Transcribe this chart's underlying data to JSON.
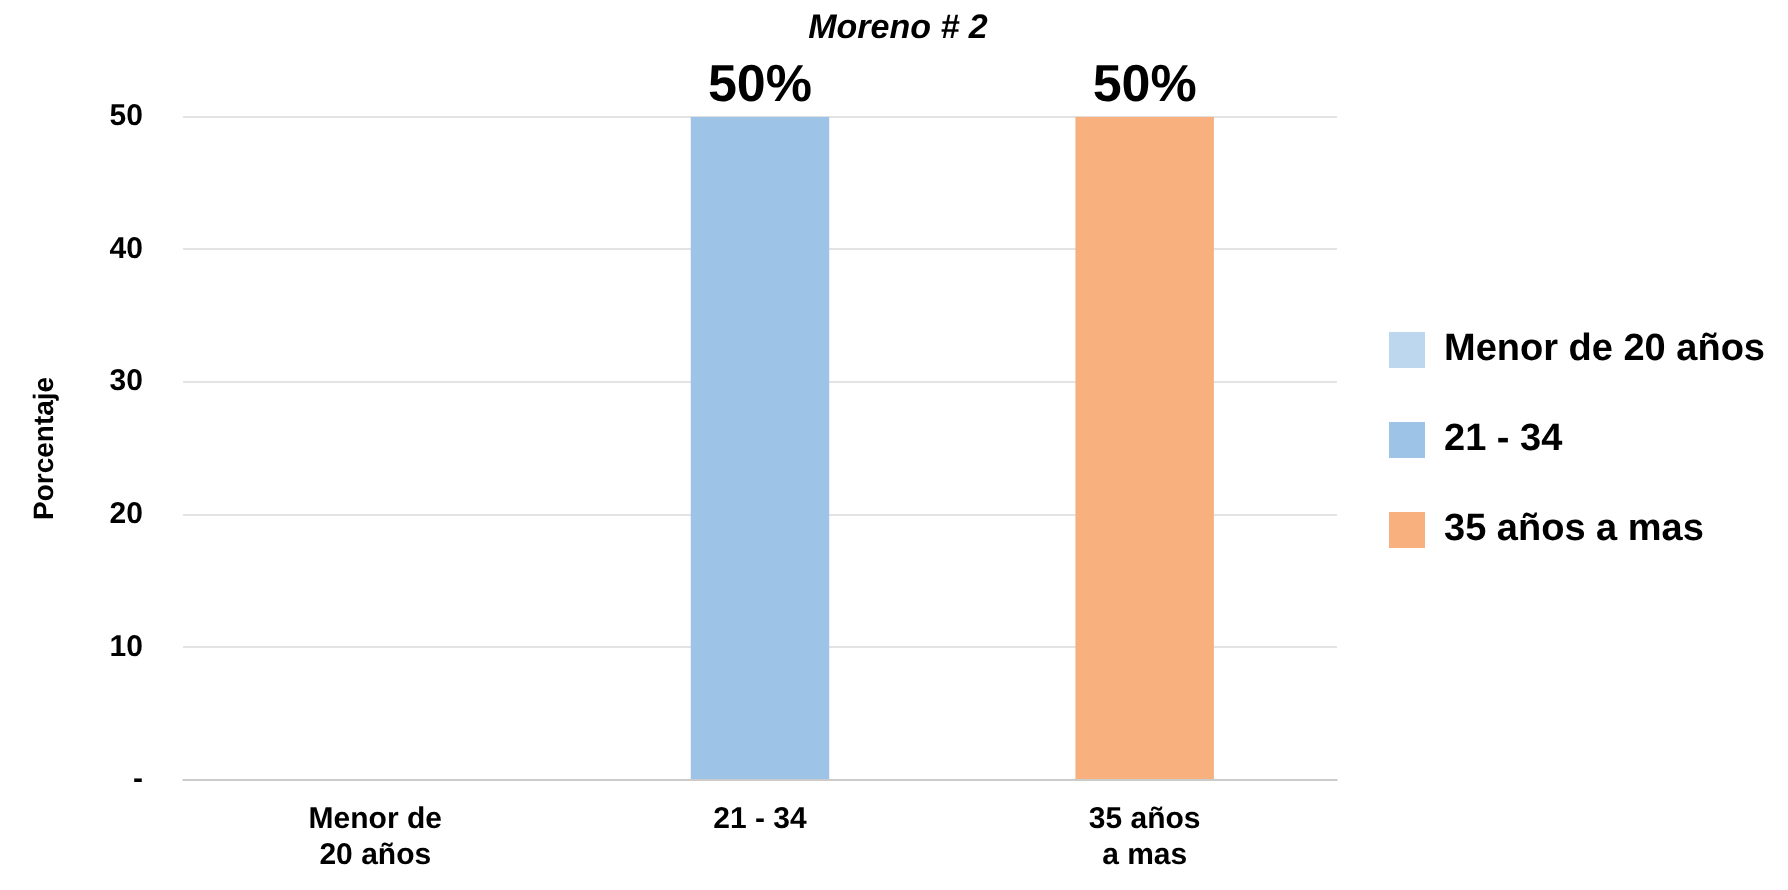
{
  "chart_data": {
    "type": "bar",
    "title": "Moreno # 2",
    "ylabel": "Porcentaje",
    "categories": [
      "Menor de 20 años",
      "21 - 34",
      "35 años a mas"
    ],
    "stacked": true,
    "series": [
      {
        "name": "Menor de 20 años",
        "color": "#bdd7ee",
        "values": [
          0,
          null,
          null
        ],
        "value_labels": [
          null,
          null,
          null
        ]
      },
      {
        "name": "21 - 34",
        "color": "#9dc3e6",
        "values": [
          null,
          50,
          null
        ],
        "value_labels": [
          null,
          "50%",
          null
        ]
      },
      {
        "name": "35 años a mas",
        "color": "#f8b07e",
        "values": [
          null,
          null,
          50
        ],
        "value_labels": [
          null,
          null,
          "50%"
        ]
      }
    ],
    "ylim": [
      0,
      50
    ],
    "yticks": [
      {
        "value": 0,
        "label": "-"
      },
      10,
      20,
      30,
      40,
      50
    ],
    "grid": "y",
    "legend": "right"
  }
}
